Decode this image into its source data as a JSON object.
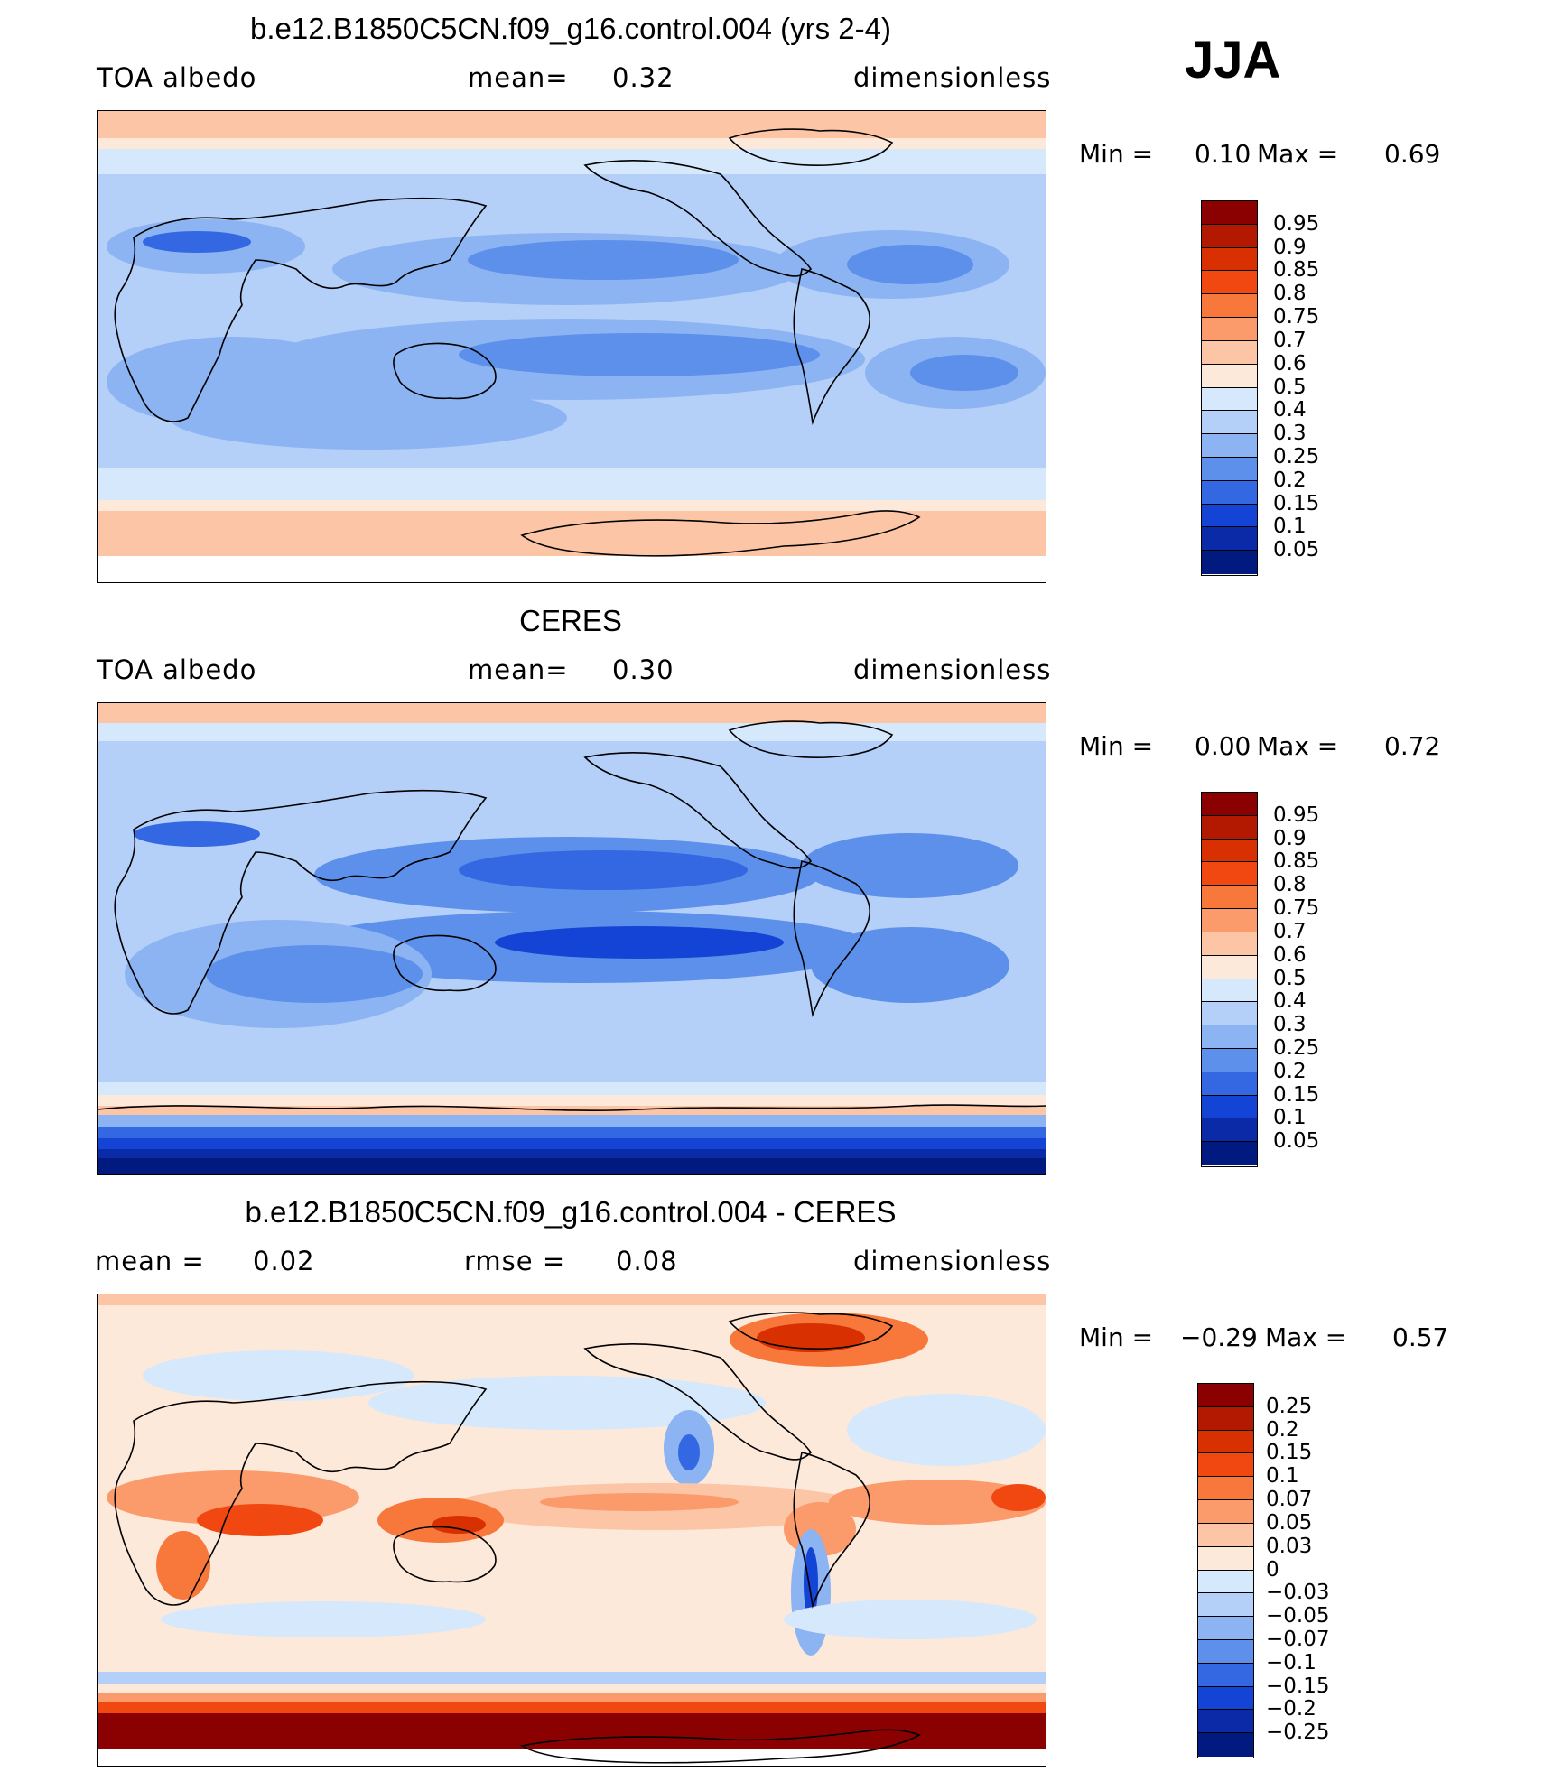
{
  "season": "JJA",
  "panels": [
    {
      "title": "b.e12.B1850C5CN.f09_g16.control.004 (yrs 2-4)",
      "left_label": "TOA  albedo",
      "mid_label": "mean=",
      "mid_value": "0.32",
      "right_label": "dimensionless",
      "min_label": "Min  =",
      "min_value": "0.10",
      "max_label": "Max  =",
      "max_value": "0.69"
    },
    {
      "title": "CERES",
      "left_label": "TOA  albedo",
      "mid_label": "mean=",
      "mid_value": "0.30",
      "right_label": "dimensionless",
      "min_label": "Min  =",
      "min_value": "0.00",
      "max_label": "Max  =",
      "max_value": "0.72"
    },
    {
      "title": "b.e12.B1850C5CN.f09_g16.control.004 - CERES",
      "left_label": "mean  =",
      "left_value": "0.02",
      "mid_label": "rmse  =",
      "mid_value": "0.08",
      "right_label": "dimensionless",
      "min_label": "Min  =",
      "min_value": "−0.29",
      "max_label": "Max  =",
      "max_value": "0.57"
    }
  ],
  "colorbars": {
    "albedo": {
      "labels": [
        "0.95",
        "0.9",
        "0.85",
        "0.8",
        "0.75",
        "0.7",
        "0.6",
        "0.5",
        "0.4",
        "0.3",
        "0.25",
        "0.2",
        "0.15",
        "0.1",
        "0.05"
      ],
      "colors": [
        "#8b0000",
        "#b31800",
        "#d83000",
        "#f04810",
        "#f8783c",
        "#fb9a6a",
        "#fcc5a5",
        "#fde9da",
        "#d6e8fb",
        "#b4cff8",
        "#8cb4f2",
        "#5c90ea",
        "#3467e2",
        "#1444d5",
        "#0a2aa8",
        "#001a80"
      ]
    },
    "difference": {
      "labels": [
        "0.25",
        "0.2",
        "0.15",
        "0.1",
        "0.07",
        "0.05",
        "0.03",
        "0",
        "−0.03",
        "−0.05",
        "−0.07",
        "−0.1",
        "−0.15",
        "−0.2",
        "−0.25"
      ],
      "colors": [
        "#8b0000",
        "#b31800",
        "#d83000",
        "#f04810",
        "#f8783c",
        "#fb9a6a",
        "#fcc5a5",
        "#fde9da",
        "#d6e8fb",
        "#b4cff8",
        "#8cb4f2",
        "#5c90ea",
        "#3467e2",
        "#1444d5",
        "#0a2aa8",
        "#001a80"
      ]
    }
  }
}
